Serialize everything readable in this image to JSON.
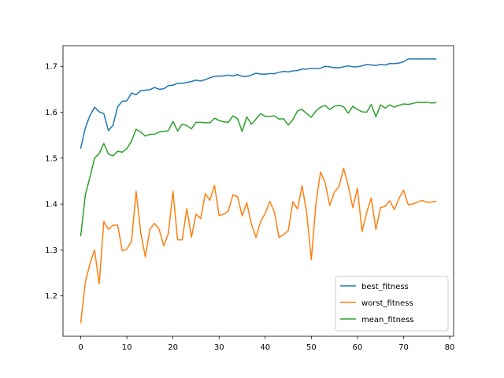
{
  "chart_data": {
    "type": "line",
    "title": "",
    "xlabel": "",
    "ylabel": "",
    "xlim": [
      -3.85,
      80.85
    ],
    "ylim": [
      1.112,
      1.745
    ],
    "xticks": [
      0,
      10,
      20,
      30,
      40,
      50,
      60,
      70,
      80
    ],
    "yticks": [
      1.2,
      1.3,
      1.4,
      1.5,
      1.6,
      1.7
    ],
    "legend_position": "lower-right",
    "grid": false,
    "x": [
      0,
      1,
      2,
      3,
      4,
      5,
      6,
      7,
      8,
      9,
      10,
      11,
      12,
      13,
      14,
      15,
      16,
      17,
      18,
      19,
      20,
      21,
      22,
      23,
      24,
      25,
      26,
      27,
      28,
      29,
      30,
      31,
      32,
      33,
      34,
      35,
      36,
      37,
      38,
      39,
      40,
      41,
      42,
      43,
      44,
      45,
      46,
      47,
      48,
      49,
      50,
      51,
      52,
      53,
      54,
      55,
      56,
      57,
      58,
      59,
      60,
      61,
      62,
      63,
      64,
      65,
      66,
      67,
      68,
      69,
      70,
      71,
      72,
      73,
      74,
      75,
      76,
      77
    ],
    "series": [
      {
        "name": "best_fitness",
        "color": "#1f77b4",
        "values": [
          1.522,
          1.566,
          1.593,
          1.611,
          1.601,
          1.597,
          1.56,
          1.572,
          1.612,
          1.624,
          1.625,
          1.642,
          1.638,
          1.647,
          1.648,
          1.649,
          1.654,
          1.65,
          1.651,
          1.658,
          1.659,
          1.663,
          1.663,
          1.665,
          1.667,
          1.67,
          1.668,
          1.671,
          1.675,
          1.678,
          1.679,
          1.679,
          1.681,
          1.679,
          1.682,
          1.678,
          1.678,
          1.681,
          1.685,
          1.683,
          1.683,
          1.684,
          1.684,
          1.687,
          1.689,
          1.688,
          1.69,
          1.691,
          1.694,
          1.694,
          1.696,
          1.695,
          1.696,
          1.7,
          1.699,
          1.697,
          1.697,
          1.699,
          1.701,
          1.699,
          1.699,
          1.701,
          1.704,
          1.703,
          1.702,
          1.704,
          1.703,
          1.706,
          1.706,
          1.707,
          1.71,
          1.716,
          1.716,
          1.716,
          1.716,
          1.716,
          1.716,
          1.716
        ]
      },
      {
        "name": "worst_fitness",
        "color": "#ff7f0e",
        "values": [
          1.142,
          1.23,
          1.27,
          1.3,
          1.226,
          1.362,
          1.345,
          1.354,
          1.354,
          1.298,
          1.302,
          1.318,
          1.428,
          1.338,
          1.285,
          1.345,
          1.358,
          1.345,
          1.309,
          1.336,
          1.428,
          1.322,
          1.322,
          1.39,
          1.328,
          1.378,
          1.368,
          1.423,
          1.408,
          1.441,
          1.375,
          1.378,
          1.385,
          1.42,
          1.416,
          1.374,
          1.403,
          1.357,
          1.327,
          1.362,
          1.38,
          1.406,
          1.382,
          1.327,
          1.334,
          1.342,
          1.405,
          1.389,
          1.44,
          1.38,
          1.279,
          1.402,
          1.47,
          1.446,
          1.397,
          1.426,
          1.438,
          1.478,
          1.44,
          1.392,
          1.434,
          1.34,
          1.382,
          1.413,
          1.345,
          1.392,
          1.395,
          1.407,
          1.388,
          1.412,
          1.43,
          1.399,
          1.4,
          1.404,
          1.408,
          1.404,
          1.404,
          1.406
        ]
      },
      {
        "name": "mean_fitness",
        "color": "#2ca02c",
        "values": [
          1.331,
          1.42,
          1.459,
          1.5,
          1.51,
          1.532,
          1.509,
          1.505,
          1.515,
          1.513,
          1.521,
          1.537,
          1.563,
          1.557,
          1.548,
          1.552,
          1.552,
          1.557,
          1.558,
          1.56,
          1.58,
          1.559,
          1.574,
          1.571,
          1.564,
          1.578,
          1.578,
          1.577,
          1.577,
          1.587,
          1.582,
          1.579,
          1.578,
          1.592,
          1.586,
          1.558,
          1.59,
          1.574,
          1.585,
          1.597,
          1.591,
          1.591,
          1.592,
          1.585,
          1.586,
          1.572,
          1.584,
          1.603,
          1.606,
          1.597,
          1.589,
          1.603,
          1.611,
          1.615,
          1.606,
          1.613,
          1.615,
          1.612,
          1.598,
          1.613,
          1.606,
          1.601,
          1.6,
          1.617,
          1.59,
          1.616,
          1.609,
          1.616,
          1.611,
          1.615,
          1.618,
          1.617,
          1.619,
          1.622,
          1.621,
          1.622,
          1.62,
          1.621
        ]
      }
    ]
  }
}
